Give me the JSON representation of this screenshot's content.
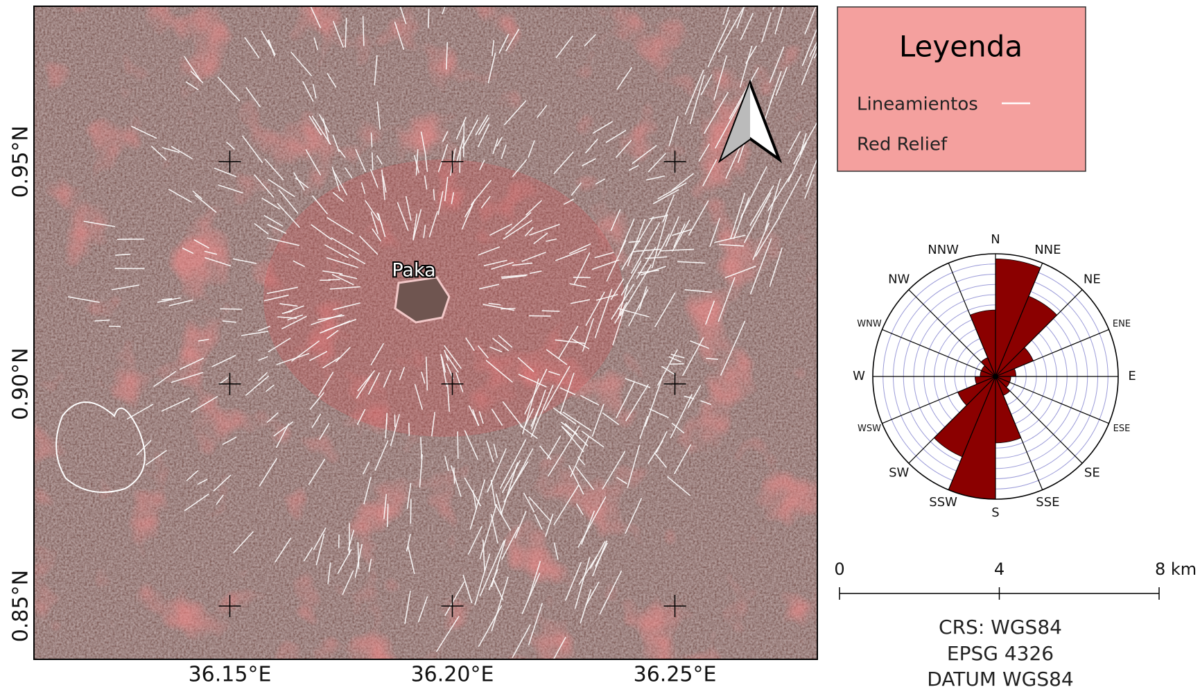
{
  "map": {
    "place_label": "Paka",
    "xlim": [
      36.106,
      36.282
    ],
    "ylim": [
      0.838,
      0.985
    ],
    "xticks": [
      {
        "value": 36.15,
        "label": "36.15°E"
      },
      {
        "value": 36.2,
        "label": "36.20°E"
      },
      {
        "value": 36.25,
        "label": "36.25°E"
      }
    ],
    "yticks": [
      {
        "value": 0.85,
        "label": "0.85°N"
      },
      {
        "value": 0.9,
        "label": "0.90°N"
      },
      {
        "value": 0.95,
        "label": "0.95°N"
      }
    ]
  },
  "legend": {
    "title": "Leyenda",
    "entries": [
      "Lineamientos",
      "Red Relief"
    ]
  },
  "chart_data": {
    "type": "rose",
    "categories": [
      "N",
      "NNE",
      "NE",
      "ENE",
      "E",
      "ESE",
      "SE",
      "SSE",
      "S",
      "SSW",
      "SW",
      "WSW",
      "W",
      "WNW",
      "NW",
      "NNW"
    ],
    "values": [
      11.5,
      8.5,
      4,
      2,
      1.5,
      1.5,
      2,
      6.5,
      12,
      8.5,
      4,
      2,
      1.5,
      1.5,
      2,
      6.5
    ],
    "color": "#8b0000",
    "rlim": [
      0,
      12
    ],
    "rticks": [
      1,
      2,
      3,
      4,
      5,
      6,
      7,
      8,
      9,
      10,
      11,
      12
    ]
  },
  "scale_bar": {
    "xlim": [
      0,
      8
    ],
    "ticks": [
      0,
      4,
      {
        "value": 8,
        "label": "8 km"
      }
    ]
  },
  "crs": [
    "CRS: WGS84",
    "EPSG 4326",
    "DATUM WGS84"
  ]
}
